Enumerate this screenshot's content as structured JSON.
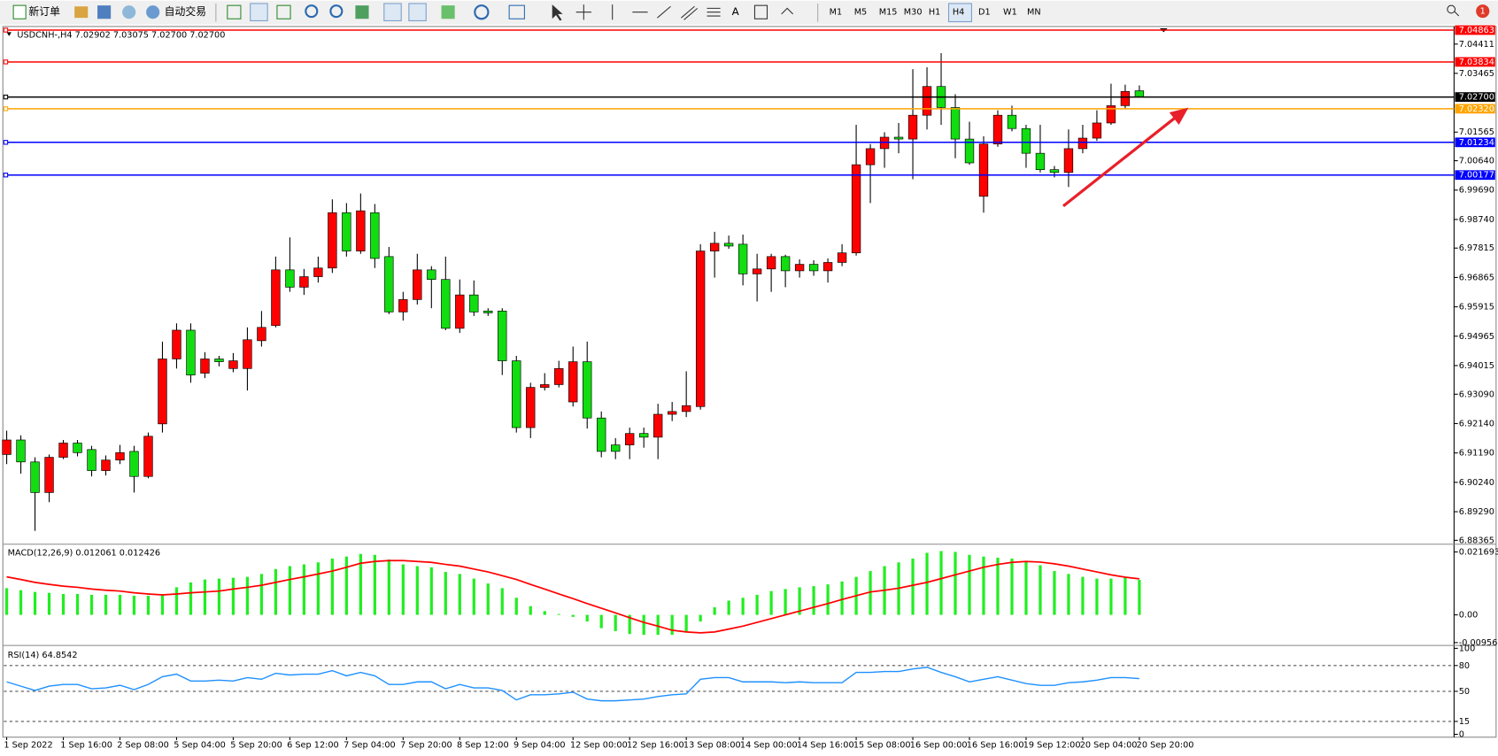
{
  "toolbar": {
    "buttons": [
      "新订单",
      "自动交易"
    ],
    "timeframes": [
      "M1",
      "M5",
      "M15",
      "M30",
      "H1",
      "H4",
      "D1",
      "W1",
      "MN"
    ],
    "active_timeframe": "H4",
    "badge": "1"
  },
  "chart_data": [
    {
      "type": "candlestick",
      "title": "USDCNH-,H4  7.02902 7.03075 7.02700 7.02700",
      "up_color": "#ff0000",
      "down_color": "#11dd11",
      "categories": [
        "1 Sep 2022",
        null,
        null,
        null,
        "1 Sep 16:00",
        null,
        null,
        null,
        "2 Sep 08:00",
        null,
        null,
        null,
        "5 Sep 04:00",
        null,
        null,
        null,
        "5 Sep 20:00",
        null,
        null,
        null,
        "6 Sep 12:00",
        null,
        null,
        null,
        "7 Sep 04:00",
        null,
        null,
        null,
        "7 Sep 20:00",
        null,
        null,
        null,
        "8 Sep 12:00",
        null,
        null,
        null,
        "9 Sep 04:00",
        null,
        null,
        null,
        "12 Sep 00:00",
        null,
        null,
        null,
        "12 Sep 16:00",
        null,
        null,
        null,
        "13 Sep 08:00",
        null,
        null,
        null,
        "14 Sep 00:00",
        null,
        null,
        null,
        "14 Sep 16:00",
        null,
        null,
        null,
        "15 Sep 08:00",
        null,
        null,
        null,
        "16 Sep 00:00",
        null,
        null,
        null,
        "16 Sep 16:00",
        null,
        null,
        null,
        "19 Sep 12:00",
        null,
        null,
        null,
        "20 Sep 04:00",
        null,
        null,
        null,
        "20 Sep 20:00"
      ],
      "values": [
        [
          6.9114,
          6.9191,
          6.9083,
          6.9161
        ],
        [
          6.9161,
          6.9176,
          6.9052,
          6.909
        ],
        [
          6.909,
          6.9105,
          6.8867,
          6.8991
        ],
        [
          6.8991,
          6.9114,
          6.896,
          6.9105
        ],
        [
          6.9105,
          6.9161,
          6.9099,
          6.9151
        ],
        [
          6.9151,
          6.9161,
          6.9108,
          6.912
        ],
        [
          6.913,
          6.9142,
          6.9043,
          6.9062
        ],
        [
          6.9062,
          6.9111,
          6.9046,
          6.9096
        ],
        [
          6.9096,
          6.9145,
          6.9083,
          6.912
        ],
        [
          6.9124,
          6.9142,
          6.8991,
          6.9043
        ],
        [
          6.9043,
          6.9185,
          6.9037,
          6.9173
        ],
        [
          6.9213,
          6.9479,
          6.9185,
          6.9423
        ],
        [
          6.9423,
          6.9538,
          6.9392,
          6.9516
        ],
        [
          6.9516,
          6.9538,
          6.9346,
          6.9371
        ],
        [
          6.9377,
          6.9445,
          6.9361,
          6.9423
        ],
        [
          6.9423,
          6.9433,
          6.9399,
          6.9414
        ],
        [
          6.9392,
          6.9442,
          6.938,
          6.9417
        ],
        [
          6.9392,
          6.9525,
          6.9321,
          6.9485
        ],
        [
          6.9482,
          6.9578,
          6.9463,
          6.9525
        ],
        [
          6.9531,
          6.9754,
          6.9525,
          6.9711
        ],
        [
          6.9711,
          6.9816,
          6.964,
          6.9655
        ],
        [
          6.9655,
          6.9714,
          6.963,
          6.9689
        ],
        [
          6.9689,
          6.9754,
          6.967,
          6.9717
        ],
        [
          6.9717,
          6.9939,
          6.9701,
          6.9896
        ],
        [
          6.9896,
          6.9927,
          6.9754,
          6.9772
        ],
        [
          6.9772,
          6.9958,
          6.9763,
          6.9902
        ],
        [
          6.9896,
          6.9924,
          6.9717,
          6.9748
        ],
        [
          6.9754,
          6.9785,
          6.9568,
          6.9575
        ],
        [
          6.9575,
          6.964,
          6.9547,
          6.9615
        ],
        [
          6.9615,
          6.9763,
          6.9599,
          6.9711
        ],
        [
          6.9711,
          6.9723,
          6.9587,
          6.968
        ],
        [
          6.968,
          6.9754,
          6.9516,
          6.9522
        ],
        [
          6.9522,
          6.968,
          6.9507,
          6.963
        ],
        [
          6.963,
          6.9677,
          6.9562,
          6.9575
        ],
        [
          6.9578,
          6.9587,
          6.9562,
          6.9572
        ],
        [
          6.9578,
          6.9587,
          6.9371,
          6.9417
        ],
        [
          6.9417,
          6.9433,
          6.9185,
          6.9201
        ],
        [
          6.9201,
          6.9346,
          6.9167,
          6.9331
        ],
        [
          6.9331,
          6.9377,
          6.9321,
          6.934
        ],
        [
          6.934,
          6.9417,
          6.9331,
          6.9392
        ],
        [
          6.9284,
          6.9463,
          6.9269,
          6.9414
        ],
        [
          6.9414,
          6.9479,
          6.9198,
          6.9232
        ],
        [
          6.9232,
          6.9253,
          6.9105,
          6.9124
        ],
        [
          6.9145,
          6.9167,
          6.9099,
          6.9124
        ],
        [
          6.9145,
          6.9201,
          6.9099,
          6.9182
        ],
        [
          6.9182,
          6.9201,
          6.9136,
          6.917
        ],
        [
          6.917,
          6.9278,
          6.9099,
          6.9244
        ],
        [
          6.9244,
          6.9284,
          6.9222,
          6.9253
        ],
        [
          6.9253,
          6.9383,
          6.9235,
          6.9272
        ],
        [
          6.9269,
          6.9794,
          6.9259,
          6.9772
        ],
        [
          6.9772,
          6.9834,
          6.9686,
          6.9797
        ],
        [
          6.9797,
          6.9822,
          6.9779,
          6.9788
        ],
        [
          6.9794,
          6.9825,
          6.9661,
          6.9698
        ],
        [
          6.9698,
          6.9763,
          6.9609,
          6.9714
        ],
        [
          6.9714,
          6.9763,
          6.964,
          6.9754
        ],
        [
          6.9754,
          6.976,
          6.9655,
          6.9708
        ],
        [
          6.9708,
          6.9745,
          6.9686,
          6.9729
        ],
        [
          6.9729,
          6.9742,
          6.9692,
          6.9708
        ],
        [
          6.9708,
          6.9748,
          6.967,
          6.9735
        ],
        [
          6.9735,
          6.9794,
          6.9723,
          6.9766
        ],
        [
          6.9766,
          7.018,
          6.9757,
          7.0051
        ],
        [
          7.0051,
          7.0118,
          6.9927,
          7.0103
        ],
        [
          7.0103,
          7.0156,
          7.0041,
          7.014
        ],
        [
          7.014,
          7.0186,
          7.0088,
          7.0134
        ],
        [
          7.0134,
          7.036,
          7.0004,
          7.0211
        ],
        [
          7.0211,
          7.0366,
          7.0165,
          7.0304
        ],
        [
          7.0304,
          7.0412,
          7.018,
          7.0236
        ],
        [
          7.0236,
          7.0279,
          7.0072,
          7.0134
        ],
        [
          7.0134,
          7.019,
          7.0051,
          7.0057
        ],
        [
          6.9949,
          7.0143,
          6.9896,
          7.0118
        ],
        [
          7.0118,
          7.0227,
          7.0109,
          7.0211
        ],
        [
          7.0211,
          7.0242,
          7.0159,
          7.0168
        ],
        [
          7.0168,
          7.018,
          7.0041,
          7.0088
        ],
        [
          7.0088,
          7.018,
          7.0026,
          7.0035
        ],
        [
          7.0035,
          7.0047,
          7.001,
          7.0026
        ],
        [
          7.0026,
          7.0165,
          6.9979,
          7.0103
        ],
        [
          7.0103,
          7.018,
          7.0088,
          7.0137
        ],
        [
          7.0137,
          7.0227,
          7.0128,
          7.0186
        ],
        [
          7.0186,
          7.0313,
          7.018,
          7.0242
        ],
        [
          7.0242,
          7.031,
          7.0233,
          7.0288
        ],
        [
          7.02902,
          7.03075,
          7.027,
          7.027
        ]
      ],
      "ylim": [
        6.8827,
        7.0495
      ],
      "yticks": [
        7.04411,
        7.03465,
        7.01565,
        {
          "value": 7.0064,
          "label": "7.00640"
        },
        {
          "value": 6.9969,
          "label": "6.99690"
        },
        {
          "value": 6.9874,
          "label": "6.98740"
        },
        6.97815,
        6.96865,
        6.95915,
        6.94965,
        6.94015,
        {
          "value": 6.9309,
          "label": "6.93090"
        },
        {
          "value": 6.9214,
          "label": "6.92140"
        },
        {
          "value": 6.9119,
          "label": "6.91190"
        },
        {
          "value": 6.9024,
          "label": "6.90240"
        },
        {
          "value": 6.8929,
          "label": "6.89290"
        },
        6.88365
      ],
      "levels": [
        {
          "value": 7.04863,
          "label": "7.04863",
          "color": "#ff0000"
        },
        {
          "value": 7.03834,
          "label": "7.03834",
          "color": "#ff0000"
        },
        {
          "value": 7.027,
          "label": "7.02700",
          "color": "#000000"
        },
        {
          "value": 7.0232,
          "label": "7.02320",
          "color": "#ffa500"
        },
        {
          "value": 7.01234,
          "label": "7.01234",
          "color": "#0000ff"
        },
        {
          "value": 7.00177,
          "label": "7.00177",
          "color": "#0000ff"
        }
      ]
    },
    {
      "type": "macd",
      "title": "MACD(12,26,9) 0.012061 0.012426",
      "color": "#22ee22",
      "signal_color": "#ff0000",
      "values": [
        0.0092,
        0.0085,
        0.0079,
        0.0076,
        0.0072,
        0.0072,
        0.0069,
        0.0069,
        0.0069,
        0.0066,
        0.0066,
        0.0072,
        0.0095,
        0.0112,
        0.0122,
        0.0125,
        0.0128,
        0.0131,
        0.0141,
        0.0158,
        0.0168,
        0.0174,
        0.0181,
        0.0194,
        0.0201,
        0.021,
        0.0207,
        0.0191,
        0.0174,
        0.0168,
        0.0164,
        0.0148,
        0.0141,
        0.0125,
        0.0108,
        0.0092,
        0.0059,
        0.003,
        0.0013,
        0.0003,
        -0.0007,
        -0.0023,
        -0.0046,
        -0.0056,
        -0.0066,
        -0.0069,
        -0.0069,
        -0.0069,
        -0.0059,
        -0.0023,
        0.0026,
        0.0049,
        0.0059,
        0.0069,
        0.0082,
        0.0089,
        0.0095,
        0.0099,
        0.0105,
        0.0115,
        0.0131,
        0.0151,
        0.0168,
        0.0181,
        0.0194,
        0.0214,
        0.022,
        0.0217,
        0.0207,
        0.0201,
        0.0197,
        0.0194,
        0.0184,
        0.0171,
        0.0151,
        0.0141,
        0.0131,
        0.0125,
        0.0125,
        0.0131,
        0.012061
      ],
      "signal": [
        0.0131,
        0.0122,
        0.0112,
        0.0105,
        0.0099,
        0.0095,
        0.0089,
        0.0085,
        0.0082,
        0.0076,
        0.0072,
        0.0069,
        0.0072,
        0.0076,
        0.0079,
        0.0082,
        0.0089,
        0.0095,
        0.0102,
        0.0112,
        0.0122,
        0.0131,
        0.0141,
        0.0151,
        0.0164,
        0.0178,
        0.0184,
        0.0187,
        0.0187,
        0.0184,
        0.0181,
        0.0174,
        0.0168,
        0.0158,
        0.0148,
        0.0135,
        0.0122,
        0.0105,
        0.0089,
        0.0072,
        0.0056,
        0.0039,
        0.0023,
        0.0007,
        -0.001,
        -0.0026,
        -0.0039,
        -0.0053,
        -0.0059,
        -0.0062,
        -0.0059,
        -0.0049,
        -0.0039,
        -0.0026,
        -0.0013,
        0,
        0.0013,
        0.0026,
        0.0039,
        0.0053,
        0.0066,
        0.0079,
        0.0085,
        0.0092,
        0.0102,
        0.0112,
        0.0125,
        0.0138,
        0.0151,
        0.0164,
        0.0174,
        0.0181,
        0.0184,
        0.0182,
        0.0176,
        0.0168,
        0.0158,
        0.0148,
        0.0138,
        0.013,
        0.012426
      ],
      "ylim": [
        -0.0099,
        0.0237
      ],
      "yticks": [
        0.021693,
        {
          "value": 0,
          "label": "0.00"
        },
        -0.009563
      ]
    },
    {
      "type": "line",
      "title": "RSI(14) 64.8542",
      "color": "#1e90ff",
      "values": [
        61,
        56,
        51,
        56,
        58,
        58,
        53,
        54,
        57,
        52,
        58,
        67,
        70,
        62,
        62,
        63,
        62,
        66,
        64,
        71,
        69,
        70,
        70,
        74,
        68,
        72,
        68,
        58,
        58,
        61,
        61,
        53,
        58,
        54,
        54,
        51,
        40,
        46,
        46,
        47,
        49,
        41,
        39,
        39,
        40,
        41,
        44,
        46,
        47,
        64,
        66,
        66,
        61,
        61,
        61,
        60,
        61,
        60,
        60,
        60,
        72,
        72,
        73,
        73,
        76,
        78,
        72,
        67,
        61,
        64,
        67,
        63,
        59,
        57,
        57,
        60,
        61,
        63,
        66,
        66,
        64.8542
      ],
      "ylim": [
        0,
        100
      ],
      "yticks": [
        100,
        80,
        50,
        15,
        0
      ],
      "levels": [
        80,
        50,
        15
      ]
    }
  ]
}
